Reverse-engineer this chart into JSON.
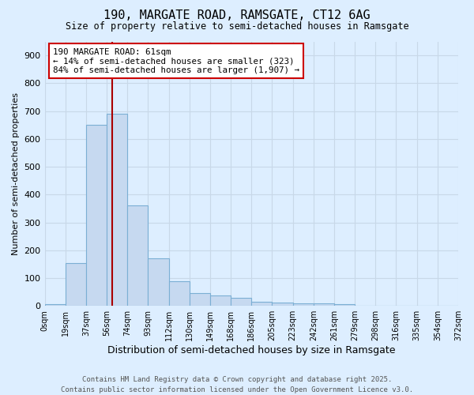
{
  "title": "190, MARGATE ROAD, RAMSGATE, CT12 6AG",
  "subtitle": "Size of property relative to semi-detached houses in Ramsgate",
  "xlabel": "Distribution of semi-detached houses by size in Ramsgate",
  "ylabel": "Number of semi-detached properties",
  "footer_line1": "Contains HM Land Registry data © Crown copyright and database right 2025.",
  "footer_line2": "Contains public sector information licensed under the Open Government Licence v3.0.",
  "bin_labels": [
    "0sqm",
    "19sqm",
    "37sqm",
    "56sqm",
    "74sqm",
    "93sqm",
    "112sqm",
    "130sqm",
    "149sqm",
    "168sqm",
    "186sqm",
    "205sqm",
    "223sqm",
    "242sqm",
    "261sqm",
    "279sqm",
    "298sqm",
    "316sqm",
    "335sqm",
    "354sqm",
    "372sqm"
  ],
  "bar_values": [
    7,
    155,
    650,
    690,
    360,
    170,
    88,
    47,
    38,
    30,
    15,
    12,
    10,
    9,
    5,
    2,
    0,
    0,
    0,
    0
  ],
  "bar_color": "#c6d9f0",
  "bar_edge_color": "#7bafd4",
  "vline_x": 3.28,
  "vline_color": "#aa0000",
  "annotation_title": "190 MARGATE ROAD: 61sqm",
  "annotation_line2": "← 14% of semi-detached houses are smaller (323)",
  "annotation_line3": "84% of semi-detached houses are larger (1,907) →",
  "annotation_box_color": "#ffffff",
  "annotation_box_edge": "#cc0000",
  "ylim": [
    0,
    950
  ],
  "yticks": [
    0,
    100,
    200,
    300,
    400,
    500,
    600,
    700,
    800,
    900
  ],
  "grid_color": "#c8d8e8",
  "background_color": "#ddeeff"
}
